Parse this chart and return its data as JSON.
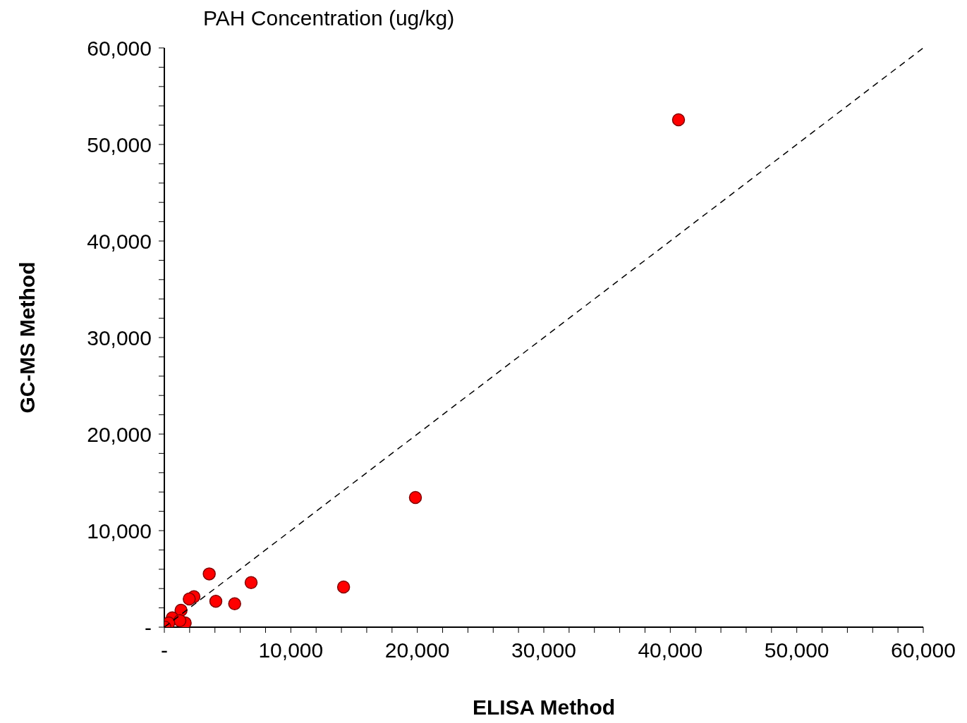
{
  "chart_data": {
    "type": "scatter",
    "title": "PAH Concentration (ug/kg)",
    "xlabel": "ELISA Method",
    "ylabel": "GC-MS Method",
    "xlim": [
      0,
      60000
    ],
    "ylim": [
      0,
      60000
    ],
    "xticks": [
      {
        "value": 0,
        "label": "-"
      },
      {
        "value": 2000,
        "label": null
      },
      {
        "value": 4000,
        "label": null
      },
      {
        "value": 6000,
        "label": null
      },
      {
        "value": 8000,
        "label": null
      },
      {
        "value": 10000,
        "label": "10,000"
      },
      {
        "value": 12000,
        "label": null
      },
      {
        "value": 14000,
        "label": null
      },
      {
        "value": 16000,
        "label": null
      },
      {
        "value": 18000,
        "label": null
      },
      {
        "value": 20000,
        "label": "20,000"
      },
      {
        "value": 22000,
        "label": null
      },
      {
        "value": 24000,
        "label": null
      },
      {
        "value": 26000,
        "label": null
      },
      {
        "value": 28000,
        "label": null
      },
      {
        "value": 30000,
        "label": "30,000"
      },
      {
        "value": 32000,
        "label": null
      },
      {
        "value": 34000,
        "label": null
      },
      {
        "value": 36000,
        "label": null
      },
      {
        "value": 38000,
        "label": null
      },
      {
        "value": 40000,
        "label": "40,000"
      },
      {
        "value": 42000,
        "label": null
      },
      {
        "value": 44000,
        "label": null
      },
      {
        "value": 46000,
        "label": null
      },
      {
        "value": 48000,
        "label": null
      },
      {
        "value": 50000,
        "label": "50,000"
      },
      {
        "value": 52000,
        "label": null
      },
      {
        "value": 54000,
        "label": null
      },
      {
        "value": 56000,
        "label": null
      },
      {
        "value": 58000,
        "label": null
      },
      {
        "value": 60000,
        "label": "60,000"
      }
    ],
    "yticks": [
      {
        "value": 0,
        "label": "-"
      },
      {
        "value": 2000,
        "label": null
      },
      {
        "value": 4000,
        "label": null
      },
      {
        "value": 6000,
        "label": null
      },
      {
        "value": 8000,
        "label": null
      },
      {
        "value": 10000,
        "label": "10,000"
      },
      {
        "value": 12000,
        "label": null
      },
      {
        "value": 14000,
        "label": null
      },
      {
        "value": 16000,
        "label": null
      },
      {
        "value": 18000,
        "label": null
      },
      {
        "value": 20000,
        "label": "20,000"
      },
      {
        "value": 22000,
        "label": null
      },
      {
        "value": 24000,
        "label": null
      },
      {
        "value": 26000,
        "label": null
      },
      {
        "value": 28000,
        "label": null
      },
      {
        "value": 30000,
        "label": "30,000"
      },
      {
        "value": 32000,
        "label": null
      },
      {
        "value": 34000,
        "label": null
      },
      {
        "value": 36000,
        "label": null
      },
      {
        "value": 38000,
        "label": null
      },
      {
        "value": 40000,
        "label": "40,000"
      },
      {
        "value": 42000,
        "label": null
      },
      {
        "value": 44000,
        "label": null
      },
      {
        "value": 46000,
        "label": null
      },
      {
        "value": 48000,
        "label": null
      },
      {
        "value": 50000,
        "label": "50,000"
      },
      {
        "value": 52000,
        "label": null
      },
      {
        "value": 54000,
        "label": null
      },
      {
        "value": 56000,
        "label": null
      },
      {
        "value": 58000,
        "label": null
      },
      {
        "value": 60000,
        "label": "60,000"
      }
    ],
    "grid": false,
    "legend": false,
    "marker": "circle",
    "series": [
      {
        "type": "scatter",
        "color": "#ff0000",
        "x": [
          40650,
          19850,
          14170,
          6860,
          5560,
          4070,
          3550,
          2340,
          1970,
          1320,
          630,
          1650,
          1230,
          350,
          50
        ],
        "values": [
          52550,
          13430,
          4160,
          4620,
          2430,
          2680,
          5520,
          3160,
          2920,
          1750,
          970,
          440,
          680,
          440,
          0
        ]
      },
      {
        "type": "line",
        "color": "#000000",
        "line_style": "dashed",
        "marker": "none",
        "x": [
          0,
          60000
        ],
        "values": [
          0,
          60000
        ]
      }
    ]
  }
}
